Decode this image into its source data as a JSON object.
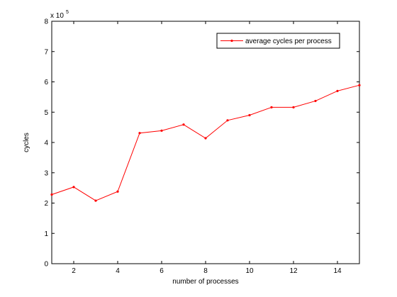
{
  "chart_data": {
    "type": "line",
    "title": "",
    "xlabel": "number of processes",
    "ylabel": "cycles",
    "y_exponent_label": "x 10",
    "y_exponent_power": "5",
    "xlim": [
      1,
      15
    ],
    "ylim": [
      0,
      8
    ],
    "xticks": [
      2,
      4,
      6,
      8,
      10,
      12,
      14
    ],
    "yticks": [
      0,
      1,
      2,
      3,
      4,
      5,
      6,
      7,
      8
    ],
    "grid": false,
    "legend_position": "top-right",
    "series": [
      {
        "name": "average cycles per process",
        "color": "#ff0000",
        "marker": "dot",
        "x": [
          1,
          2,
          3,
          4,
          5,
          6,
          7,
          8,
          9,
          10,
          11,
          12,
          13,
          14,
          15
        ],
        "y": [
          2.28,
          2.53,
          2.08,
          2.38,
          4.31,
          4.39,
          4.59,
          4.14,
          4.73,
          4.9,
          5.16,
          5.16,
          5.37,
          5.7,
          5.89
        ]
      }
    ]
  }
}
